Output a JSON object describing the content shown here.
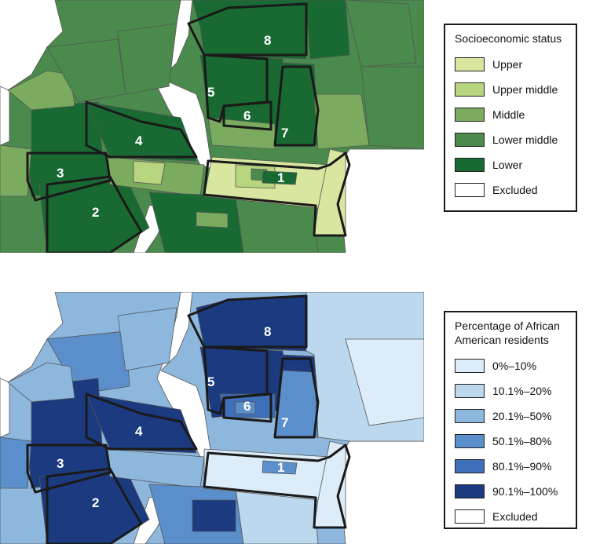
{
  "top_map": {
    "legend_title": "Socioeconomic status",
    "legend": [
      {
        "label": "Upper",
        "color": "#d8e6a0"
      },
      {
        "label": "Upper middle",
        "color": "#b7d47f"
      },
      {
        "label": "Middle",
        "color": "#7aab5e"
      },
      {
        "label": "Lower middle",
        "color": "#4a8a4c"
      },
      {
        "label": "Lower",
        "color": "#186a32"
      },
      {
        "label": "Excluded",
        "color": "#ffffff"
      }
    ]
  },
  "bottom_map": {
    "legend_title": "Percentage of African American residents",
    "legend": [
      {
        "label": "0%–10%",
        "color": "#dcecf8"
      },
      {
        "label": "10.1%–20%",
        "color": "#bcd8ee"
      },
      {
        "label": "20.1%–50%",
        "color": "#8eb7de"
      },
      {
        "label": "50.1%–80%",
        "color": "#5b8fcb"
      },
      {
        "label": "80.1%–90%",
        "color": "#3f6fb8"
      },
      {
        "label": "90.1%–100%",
        "color": "#1b3a80"
      },
      {
        "label": "Excluded",
        "color": "#ffffff"
      }
    ]
  },
  "districts": [
    "1",
    "2",
    "3",
    "4",
    "5",
    "6",
    "7",
    "8"
  ]
}
